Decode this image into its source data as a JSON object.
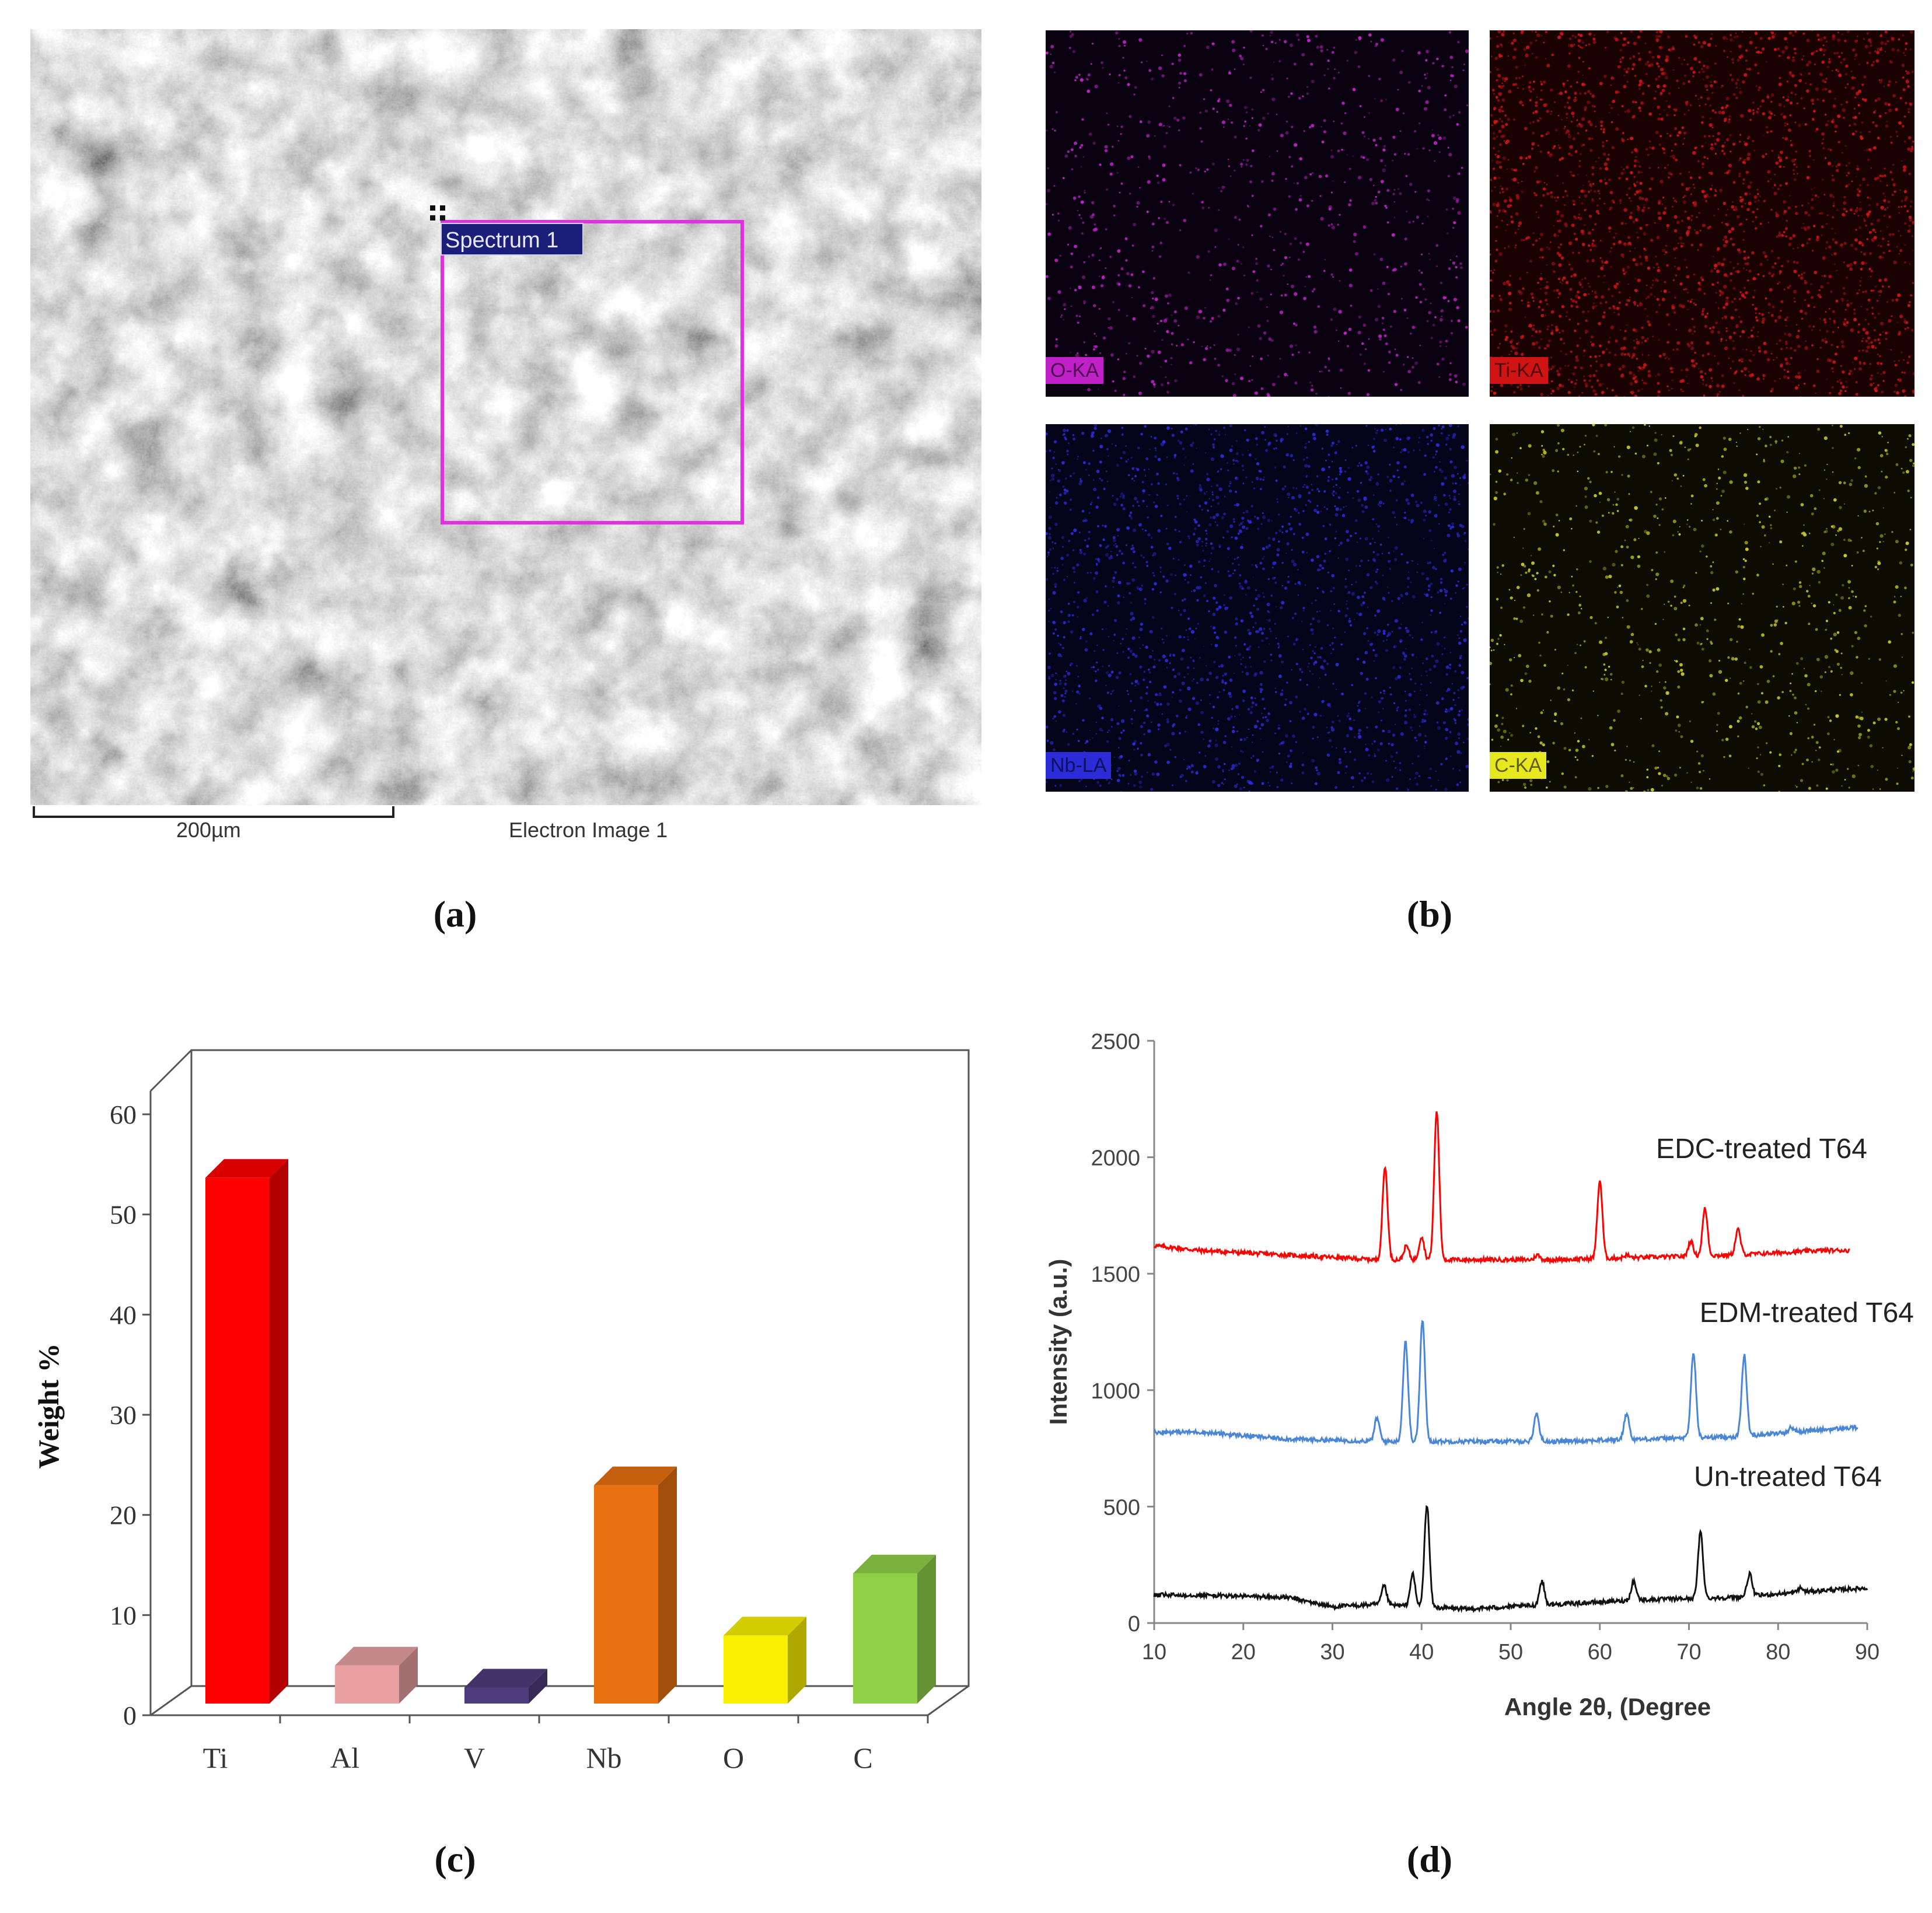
{
  "panel_a": {
    "caption": "(a)",
    "spectrum_label": "Spectrum 1",
    "scale_label": "200µm",
    "image_label": "Electron Image 1"
  },
  "panel_b": {
    "caption": "(b)",
    "maps": [
      {
        "label": "O-KA",
        "dot_color": "#c020c8",
        "bg": "#0a0210",
        "tag_color": "#c020c8"
      },
      {
        "label": "Ti-KA",
        "dot_color": "#d01414",
        "bg": "#1a0202",
        "tag_color": "#d01414"
      },
      {
        "label": "Nb-LA",
        "dot_color": "#2b2bd8",
        "bg": "#04041a",
        "tag_color": "#2b2bd8"
      },
      {
        "label": "C-KA",
        "dot_color": "#c8c81e",
        "bg": "#0c0c02",
        "tag_color": "#e8e820"
      }
    ]
  },
  "panel_c": {
    "caption": "(c)",
    "chart_data": {
      "type": "bar",
      "categories": [
        "Ti",
        "Al",
        "V",
        "Nb",
        "O",
        "C"
      ],
      "values": [
        52.5,
        3.8,
        1.6,
        21.8,
        6.8,
        13.0
      ],
      "colors": [
        "#ff0000",
        "#e8a0a0",
        "#503c7c",
        "#e87010",
        "#f8f000",
        "#90d048"
      ],
      "ylabel": "Weight %",
      "ylim": [
        0,
        60
      ],
      "yticks": [
        0,
        10,
        20,
        30,
        40,
        50,
        60
      ]
    }
  },
  "panel_d": {
    "caption": "(d)",
    "chart_data": {
      "type": "line",
      "xlabel": "Angle 2θ, (Degree",
      "ylabel": "Intensity (a.u.)",
      "xlim": [
        10,
        90
      ],
      "ylim": [
        0,
        2500
      ],
      "xticks": [
        10,
        20,
        30,
        40,
        50,
        60,
        70,
        80,
        90
      ],
      "yticks": [
        0,
        500,
        1000,
        1500,
        2000,
        2500
      ],
      "series": [
        {
          "name": "EDC-treated T64",
          "color": "#ff0000",
          "baseline": [
            [
              10,
              1620
            ],
            [
              15,
              1600
            ],
            [
              25,
              1580
            ],
            [
              35,
              1560
            ],
            [
              45,
              1560
            ],
            [
              55,
              1560
            ],
            [
              65,
              1570
            ],
            [
              75,
              1580
            ],
            [
              85,
              1600
            ],
            [
              88,
              1600
            ]
          ],
          "peaks": [
            [
              35.9,
              1960
            ],
            [
              38.3,
              1620
            ],
            [
              40.0,
              1660
            ],
            [
              41.7,
              2200
            ],
            [
              53.0,
              1580
            ],
            [
              60.0,
              1900
            ],
            [
              63.0,
              1580
            ],
            [
              70.2,
              1640
            ],
            [
              71.8,
              1780
            ],
            [
              75.5,
              1690
            ]
          ]
        },
        {
          "name": "EDM-treated T64",
          "color": "#4a86d8",
          "baseline": [
            [
              10,
              820
            ],
            [
              15,
              820
            ],
            [
              25,
              790
            ],
            [
              35,
              780
            ],
            [
              45,
              780
            ],
            [
              55,
              780
            ],
            [
              65,
              790
            ],
            [
              75,
              800
            ],
            [
              85,
              830
            ],
            [
              89,
              840
            ]
          ],
          "peaks": [
            [
              35.0,
              880
            ],
            [
              38.2,
              1210
            ],
            [
              40.1,
              1300
            ],
            [
              52.9,
              900
            ],
            [
              63.0,
              900
            ],
            [
              70.5,
              1160
            ],
            [
              76.2,
              1150
            ],
            [
              81.5,
              840
            ]
          ]
        },
        {
          "name": "Un-treated T64",
          "color": "#111111",
          "baseline": [
            [
              10,
              120
            ],
            [
              15,
              120
            ],
            [
              25,
              110
            ],
            [
              30,
              70
            ],
            [
              35,
              80
            ],
            [
              45,
              60
            ],
            [
              55,
              80
            ],
            [
              65,
              100
            ],
            [
              75,
              110
            ],
            [
              85,
              140
            ],
            [
              90,
              150
            ]
          ],
          "peaks": [
            [
              35.8,
              160
            ],
            [
              39.0,
              210
            ],
            [
              40.6,
              510
            ],
            [
              53.5,
              180
            ],
            [
              63.8,
              180
            ],
            [
              71.3,
              390
            ],
            [
              76.8,
              210
            ],
            [
              82.5,
              150
            ]
          ]
        }
      ]
    }
  }
}
